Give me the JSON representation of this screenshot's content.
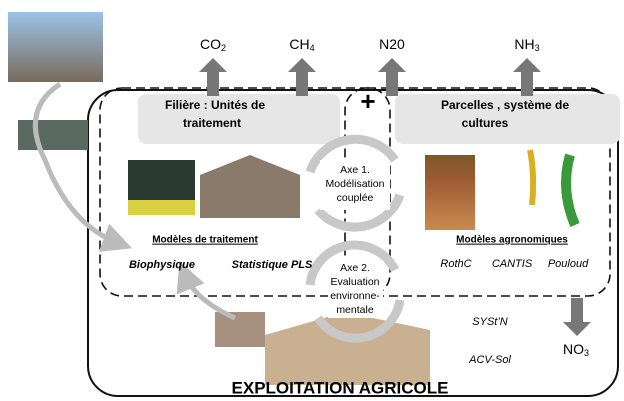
{
  "gases": [
    {
      "base": "CO",
      "sub": "2"
    },
    {
      "base": "CH",
      "sub": "4"
    },
    {
      "base": "N",
      "sub": "20"
    },
    {
      "base": "NH",
      "sub": "3"
    }
  ],
  "plus": "+",
  "left_box": {
    "title_lines": [
      "Filière : Unités de",
      "traitement"
    ],
    "models_title": "Modèles de traitement",
    "models": [
      "Biophysique",
      "Statistique PLS"
    ]
  },
  "right_box": {
    "title_lines": [
      "Parcelles , système de",
      "cultures"
    ],
    "models_title": "Modèles agronomiques",
    "models": [
      "RothC",
      "CANTIS",
      "Pouloud"
    ]
  },
  "axis1": {
    "lines": [
      "Axe 1.",
      "Modélisation",
      "couplée"
    ]
  },
  "axis2": {
    "lines": [
      "Axe 2.",
      "Evaluation",
      "environne-",
      "mentale"
    ]
  },
  "tools": [
    "SYSt’N",
    "ACV-Sol"
  ],
  "nitrate": {
    "base": "NO",
    "sub": "3"
  },
  "farm_label": "EXPLOITATION AGRICOLE"
}
